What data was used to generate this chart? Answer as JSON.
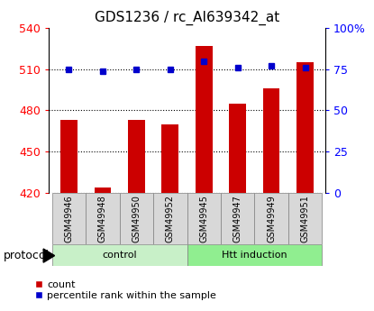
{
  "title": "GDS1236 / rc_AI639342_at",
  "samples": [
    "GSM49946",
    "GSM49948",
    "GSM49950",
    "GSM49952",
    "GSM49945",
    "GSM49947",
    "GSM49949",
    "GSM49951"
  ],
  "counts": [
    473,
    424,
    473,
    470,
    527,
    485,
    496,
    515
  ],
  "percentile_ranks": [
    75,
    74,
    75,
    75,
    80,
    76,
    77,
    76
  ],
  "group_labels": [
    "control",
    "Htt induction"
  ],
  "group_colors": [
    "#c8f0c8",
    "#90ee90"
  ],
  "left_ylim": [
    420,
    540
  ],
  "left_yticks": [
    420,
    450,
    480,
    510,
    540
  ],
  "right_ylim": [
    0,
    100
  ],
  "right_yticks": [
    0,
    25,
    50,
    75,
    100
  ],
  "right_yticklabels": [
    "0",
    "25",
    "50",
    "75",
    "100%"
  ],
  "bar_color": "#cc0000",
  "dot_color": "#0000cc",
  "bar_width": 0.5,
  "protocol_label": "protocol",
  "legend_count_label": "count",
  "legend_percentile_label": "percentile rank within the sample",
  "sample_box_color": "#d8d8d8",
  "group_split": 4
}
